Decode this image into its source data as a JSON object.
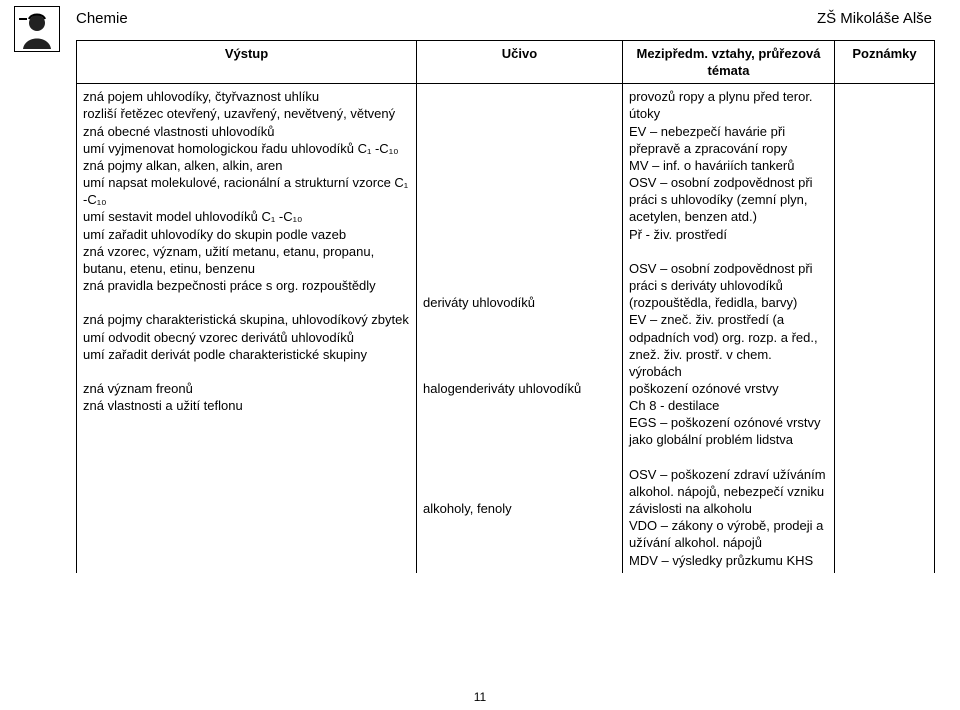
{
  "header": {
    "subject": "Chemie",
    "school": "ZŠ Mikoláše Alše",
    "page_number": "11"
  },
  "columns": {
    "vystup": "Výstup",
    "ucivo": "Učivo",
    "mezi_line1": "Mezipředm. vztahy, průřezová",
    "mezi_line2": "témata",
    "poznamky": "Poznámky"
  },
  "vystup_lines": [
    "zná pojem uhlovodíky, čtyřvaznost uhlíku",
    "rozliší řetězec otevřený, uzavřený, nevětvený, větvený",
    "zná obecné vlastnosti uhlovodíků",
    "umí vyjmenovat homologickou řadu uhlovodíků C₁ -C₁₀",
    "zná pojmy alkan, alken, alkin, aren",
    "umí napsat molekulové, racionální a strukturní vzorce C₁ -C₁₀",
    "umí sestavit model uhlovodíků C₁ -C₁₀",
    "umí zařadit uhlovodíky do skupin podle vazeb",
    "zná vzorec, význam, užití metanu, etanu, propanu, butanu, etenu, etinu, benzenu",
    "zná pravidla bezpečnosti práce s org. rozpouštědly",
    "",
    "zná pojmy charakteristická skupina, uhlovodíkový zbytek",
    "umí odvodit obecný vzorec derivátů uhlovodíků",
    "umí zařadit derivát podle charakteristické skupiny",
    "",
    "zná význam freonů",
    "zná vlastnosti a užití teflonu"
  ],
  "ucivo_blocks": {
    "b1": "\n\n\n\n\n\n\n\n\n\n\n\nderiváty uhlovodíků\n\n\n\n\nhalogenderiváty uhlovodíků\n\n\n\n\n\n\nalkoholy, fenoly"
  },
  "mezi_lines": [
    "provozů ropy a plynu před teror. útoky",
    "EV – nebezpečí havárie při přepravě a zpracování ropy",
    "MV – inf. o haváriích tankerů",
    "OSV – osobní zodpovědnost při práci s uhlovodíky (zemní plyn, acetylen, benzen atd.)",
    "Př - živ. prostředí",
    "",
    "OSV – osobní zodpovědnost při práci s deriváty uhlovodíků (rozpouštědla, ředidla, barvy)",
    "EV – zneč. živ. prostředí (a odpadních vod) org. rozp. a řed., znež. živ. prostř. v chem. výrobách",
    " poškození ozónové vrstvy",
    "Ch 8 - destilace",
    "EGS – poškození ozónové vrstvy jako globální problém lidstva",
    "",
    "OSV – poškození zdraví užíváním alkohol. nápojů, nebezpečí vzniku závislosti na alkoholu",
    "VDO – zákony o výrobě, prodeji a užívání alkohol. nápojů",
    "MDV – výsledky průzkumu KHS"
  ]
}
